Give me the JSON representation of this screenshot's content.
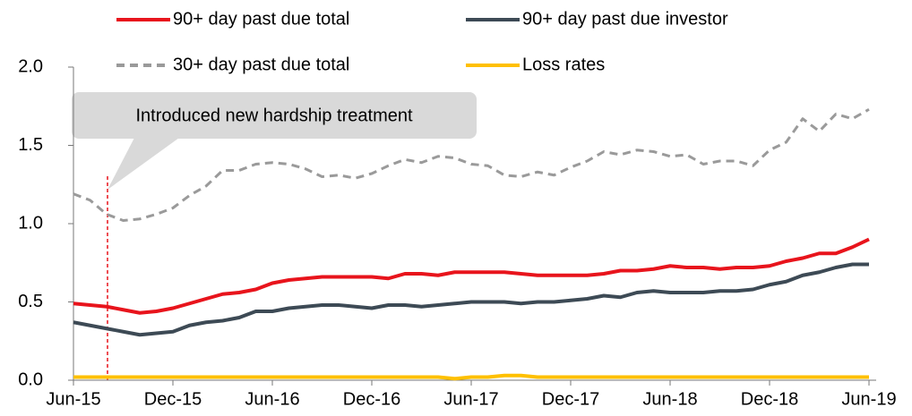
{
  "chart_data": {
    "type": "line",
    "categories": [
      "Jun-15",
      null,
      null,
      null,
      null,
      null,
      "Dec-15",
      null,
      null,
      null,
      null,
      null,
      "Jun-16",
      null,
      null,
      null,
      null,
      null,
      "Dec-16",
      null,
      null,
      null,
      null,
      null,
      "Jun-17",
      null,
      null,
      null,
      null,
      null,
      "Dec-17",
      null,
      null,
      null,
      null,
      null,
      "Jun-18",
      null,
      null,
      null,
      null,
      null,
      "Dec-18",
      null,
      null,
      null,
      null,
      null,
      "Jun-19"
    ],
    "series": [
      {
        "name": "90+ day past due total",
        "color": "#e8141c",
        "dash": false,
        "values": [
          0.49,
          0.48,
          0.47,
          0.45,
          0.43,
          0.44,
          0.46,
          0.49,
          0.52,
          0.55,
          0.56,
          0.58,
          0.62,
          0.64,
          0.65,
          0.66,
          0.66,
          0.66,
          0.66,
          0.65,
          0.68,
          0.68,
          0.67,
          0.69,
          0.69,
          0.69,
          0.69,
          0.68,
          0.67,
          0.67,
          0.67,
          0.67,
          0.68,
          0.7,
          0.7,
          0.71,
          0.73,
          0.72,
          0.72,
          0.71,
          0.72,
          0.72,
          0.73,
          0.76,
          0.78,
          0.81,
          0.81,
          0.85,
          0.9
        ]
      },
      {
        "name": "90+ day past due investor",
        "color": "#3d4a55",
        "dash": false,
        "values": [
          0.37,
          0.35,
          0.33,
          0.31,
          0.29,
          0.3,
          0.31,
          0.35,
          0.37,
          0.38,
          0.4,
          0.44,
          0.44,
          0.46,
          0.47,
          0.48,
          0.48,
          0.47,
          0.46,
          0.48,
          0.48,
          0.47,
          0.48,
          0.49,
          0.5,
          0.5,
          0.5,
          0.49,
          0.5,
          0.5,
          0.51,
          0.52,
          0.54,
          0.53,
          0.56,
          0.57,
          0.56,
          0.56,
          0.56,
          0.57,
          0.57,
          0.58,
          0.61,
          0.63,
          0.67,
          0.69,
          0.72,
          0.74,
          0.74
        ]
      },
      {
        "name": "30+ day past due total",
        "color": "#9a9a9a",
        "dash": true,
        "values": [
          1.19,
          1.15,
          1.06,
          1.02,
          1.03,
          1.06,
          1.1,
          1.18,
          1.24,
          1.34,
          1.34,
          1.38,
          1.39,
          1.38,
          1.35,
          1.3,
          1.31,
          1.29,
          1.32,
          1.37,
          1.41,
          1.39,
          1.43,
          1.42,
          1.38,
          1.37,
          1.31,
          1.3,
          1.33,
          1.31,
          1.36,
          1.4,
          1.46,
          1.44,
          1.47,
          1.46,
          1.43,
          1.44,
          1.38,
          1.4,
          1.4,
          1.37,
          1.47,
          1.52,
          1.67,
          1.59,
          1.7,
          1.67,
          1.73
        ]
      },
      {
        "name": "Loss rates",
        "color": "#ffc000",
        "dash": false,
        "values": [
          0.02,
          0.02,
          0.02,
          0.02,
          0.02,
          0.02,
          0.02,
          0.02,
          0.02,
          0.02,
          0.02,
          0.02,
          0.02,
          0.02,
          0.02,
          0.02,
          0.02,
          0.02,
          0.02,
          0.02,
          0.02,
          0.02,
          0.02,
          0.01,
          0.02,
          0.02,
          0.03,
          0.03,
          0.02,
          0.02,
          0.02,
          0.02,
          0.02,
          0.02,
          0.02,
          0.02,
          0.02,
          0.02,
          0.02,
          0.02,
          0.02,
          0.02,
          0.02,
          0.02,
          0.02,
          0.02,
          0.02,
          0.02,
          0.02
        ]
      }
    ],
    "ylim": [
      0,
      2
    ],
    "yticks": [
      {
        "value": 0,
        "label": "0.0"
      },
      0.5,
      {
        "value": 1,
        "label": "1.0"
      },
      1.5,
      {
        "value": 2,
        "label": "2.0"
      }
    ],
    "annotation": "Introduced new hardship treatment",
    "legend": "top"
  }
}
